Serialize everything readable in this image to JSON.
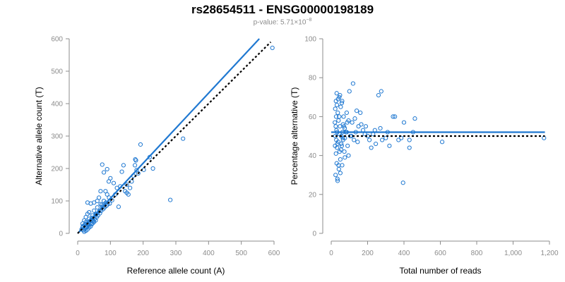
{
  "header": {
    "title": "rs28654511 - ENSG00000198189",
    "pvalue_prefix": "p-value: 5.71×10",
    "pvalue_exp": "−8"
  },
  "colors": {
    "points": "#1f78d1",
    "fit": "#1f78d1",
    "reference": "#000000",
    "ticks": "#8c8c8c"
  },
  "chart_data": [
    {
      "type": "scatter",
      "title": "",
      "xlabel": "Reference allele count (A)",
      "ylabel": "Alternative allele count (T)",
      "xlim": [
        0,
        600
      ],
      "ylim": [
        0,
        600
      ],
      "xticks": [
        0,
        100,
        200,
        300,
        400,
        500,
        600
      ],
      "yticks": [
        0,
        100,
        200,
        300,
        400,
        500,
        600
      ],
      "xtick_labels": [
        "0",
        "100",
        "200",
        "300",
        "400",
        "500",
        "600"
      ],
      "ytick_labels": [
        "0",
        "100",
        "200",
        "300",
        "400",
        "500",
        "600"
      ],
      "grid": false,
      "fit_line": {
        "from": [
          0,
          0
        ],
        "to": [
          555,
          600
        ]
      },
      "reference_line": {
        "from": [
          0,
          0
        ],
        "to": [
          590,
          590
        ],
        "style": "dotted"
      },
      "points": [
        [
          595,
          572
        ],
        [
          322,
          292
        ],
        [
          283,
          103
        ],
        [
          192,
          274
        ],
        [
          202,
          196
        ],
        [
          220,
          235
        ],
        [
          230,
          200
        ],
        [
          75,
          212
        ],
        [
          80,
          188
        ],
        [
          90,
          198
        ],
        [
          100,
          170
        ],
        [
          95,
          160
        ],
        [
          110,
          155
        ],
        [
          120,
          140
        ],
        [
          130,
          145
        ],
        [
          135,
          190
        ],
        [
          140,
          210
        ],
        [
          150,
          150
        ],
        [
          150,
          125
        ],
        [
          160,
          140
        ],
        [
          165,
          160
        ],
        [
          170,
          178
        ],
        [
          175,
          210
        ],
        [
          180,
          195
        ],
        [
          125,
          82
        ],
        [
          105,
          102
        ],
        [
          115,
          120
        ],
        [
          145,
          130
        ],
        [
          155,
          120
        ],
        [
          185,
          185
        ],
        [
          178,
          225
        ],
        [
          176,
          228
        ],
        [
          70,
          130
        ],
        [
          65,
          110
        ],
        [
          60,
          100
        ],
        [
          50,
          95
        ],
        [
          40,
          92
        ],
        [
          30,
          95
        ],
        [
          85,
          130
        ],
        [
          90,
          120
        ],
        [
          80,
          100
        ],
        [
          70,
          90
        ],
        [
          75,
          82
        ],
        [
          60,
          80
        ],
        [
          55,
          60
        ],
        [
          50,
          70
        ],
        [
          45,
          55
        ],
        [
          40,
          40
        ],
        [
          35,
          45
        ],
        [
          30,
          30
        ],
        [
          25,
          35
        ],
        [
          20,
          25
        ],
        [
          15,
          18
        ],
        [
          18,
          10
        ],
        [
          22,
          15
        ],
        [
          28,
          20
        ],
        [
          32,
          25
        ],
        [
          38,
          30
        ],
        [
          42,
          28
        ],
        [
          48,
          38
        ],
        [
          52,
          45
        ],
        [
          58,
          50
        ],
        [
          62,
          55
        ],
        [
          68,
          62
        ],
        [
          72,
          70
        ],
        [
          78,
          75
        ],
        [
          82,
          80
        ],
        [
          88,
          85
        ],
        [
          92,
          90
        ],
        [
          98,
          92
        ],
        [
          20,
          5
        ],
        [
          25,
          8
        ],
        [
          30,
          12
        ],
        [
          35,
          18
        ],
        [
          40,
          22
        ],
        [
          45,
          30
        ],
        [
          50,
          35
        ],
        [
          55,
          40
        ],
        [
          15,
          30
        ],
        [
          20,
          40
        ],
        [
          25,
          50
        ],
        [
          30,
          60
        ],
        [
          35,
          65
        ],
        [
          12,
          12
        ],
        [
          16,
          22
        ],
        [
          24,
          28
        ],
        [
          26,
          18
        ],
        [
          34,
          36
        ],
        [
          44,
          48
        ],
        [
          46,
          42
        ],
        [
          56,
          58
        ],
        [
          66,
          68
        ],
        [
          74,
          88
        ],
        [
          86,
          95
        ],
        [
          96,
          110
        ]
      ]
    },
    {
      "type": "scatter",
      "title": "",
      "xlabel": "Total number of reads",
      "ylabel": "Percentage alternative (T)",
      "xlim": [
        0,
        1200
      ],
      "ylim": [
        0,
        100
      ],
      "xticks": [
        0,
        200,
        400,
        600,
        800,
        1000,
        1200
      ],
      "yticks": [
        0,
        20,
        40,
        60,
        80,
        100
      ],
      "xtick_labels": [
        "0",
        "200",
        "400",
        "600",
        "800",
        "1,000",
        "1,200"
      ],
      "ytick_labels": [
        "0",
        "20",
        "40",
        "60",
        "80",
        "100"
      ],
      "grid": false,
      "fit_line": {
        "from": [
          0,
          52
        ],
        "to": [
          1175,
          52
        ]
      },
      "reference_line": {
        "from": [
          0,
          50
        ],
        "to": [
          1175,
          50
        ],
        "style": "dotted"
      },
      "points": [
        [
          1170,
          49
        ],
        [
          610,
          47
        ],
        [
          460,
          59
        ],
        [
          450,
          52
        ],
        [
          430,
          44
        ],
        [
          430,
          48
        ],
        [
          400,
          57
        ],
        [
          395,
          26
        ],
        [
          385,
          49
        ],
        [
          370,
          48
        ],
        [
          350,
          60
        ],
        [
          340,
          60
        ],
        [
          320,
          45
        ],
        [
          300,
          49
        ],
        [
          280,
          48
        ],
        [
          275,
          73
        ],
        [
          270,
          54
        ],
        [
          260,
          71
        ],
        [
          245,
          46
        ],
        [
          230,
          51
        ],
        [
          210,
          48
        ],
        [
          200,
          50
        ],
        [
          190,
          55
        ],
        [
          175,
          53
        ],
        [
          160,
          62
        ],
        [
          150,
          55
        ],
        [
          140,
          63
        ],
        [
          130,
          59
        ],
        [
          120,
          77
        ],
        [
          115,
          57
        ],
        [
          110,
          50
        ],
        [
          100,
          73
        ],
        [
          95,
          40
        ],
        [
          90,
          45
        ],
        [
          88,
          57
        ],
        [
          85,
          62
        ],
        [
          80,
          52
        ],
        [
          75,
          49
        ],
        [
          72,
          42
        ],
        [
          70,
          55
        ],
        [
          68,
          60
        ],
        [
          65,
          48
        ],
        [
          62,
          52
        ],
        [
          60,
          68
        ],
        [
          58,
          45
        ],
        [
          55,
          50
        ],
        [
          52,
          65
        ],
        [
          50,
          38
        ],
        [
          48,
          55
        ],
        [
          46,
          42
        ],
        [
          44,
          70
        ],
        [
          42,
          33
        ],
        [
          40,
          58
        ],
        [
          38,
          47
        ],
        [
          36,
          62
        ],
        [
          34,
          28
        ],
        [
          33,
          52
        ],
        [
          32,
          44
        ],
        [
          31,
          66
        ],
        [
          30,
          36
        ],
        [
          29,
          53
        ],
        [
          28,
          48
        ],
        [
          27,
          60
        ],
        [
          26,
          41
        ],
        [
          25,
          55
        ],
        [
          24,
          30
        ],
        [
          23,
          50
        ],
        [
          22,
          64
        ],
        [
          21,
          45
        ],
        [
          20,
          57
        ],
        [
          45,
          51
        ],
        [
          55,
          46
        ],
        [
          65,
          56
        ],
        [
          75,
          39
        ],
        [
          85,
          52
        ],
        [
          95,
          58
        ],
        [
          105,
          50
        ],
        [
          125,
          48
        ],
        [
          135,
          52
        ],
        [
          145,
          47
        ],
        [
          165,
          56
        ],
        [
          185,
          51
        ],
        [
          220,
          44
        ],
        [
          240,
          53
        ],
        [
          310,
          52
        ],
        [
          35,
          27
        ],
        [
          40,
          35
        ],
        [
          50,
          31
        ],
        [
          60,
          35
        ],
        [
          38,
          69
        ],
        [
          48,
          71
        ],
        [
          58,
          67
        ],
        [
          30,
          72
        ],
        [
          26,
          68
        ],
        [
          34,
          46
        ],
        [
          44,
          60
        ],
        [
          54,
          43
        ],
        [
          64,
          49
        ],
        [
          74,
          54
        ]
      ]
    }
  ]
}
